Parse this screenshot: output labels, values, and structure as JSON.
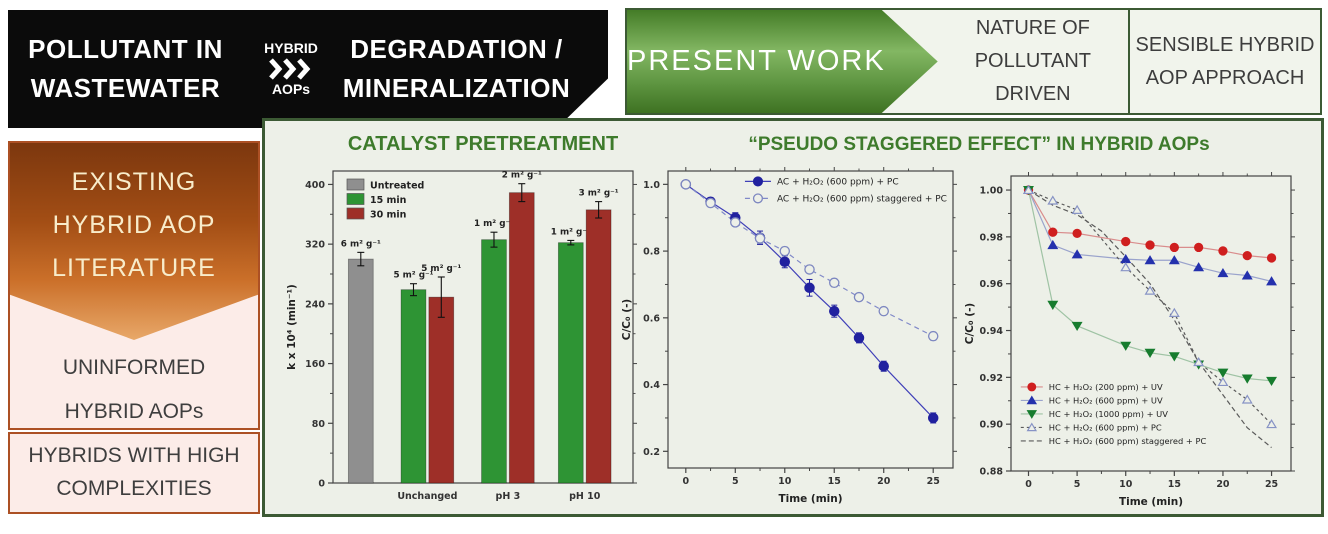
{
  "banner": {
    "left_line1": "POLLUTANT IN",
    "left_line2": "WASTEWATER",
    "mid_top": "HYBRID",
    "mid_bottom": "AOPs",
    "right_line1": "DEGRADATION /",
    "right_line2": "MINERALIZATION"
  },
  "header": {
    "present_work": "PRESENT WORK",
    "nature_line1": "NATURE OF",
    "nature_line2": "POLLUTANT DRIVEN",
    "sensible_line1": "SENSIBLE HYBRID",
    "sensible_line2": "AOP APPROACH"
  },
  "left_panel": {
    "arrow_line1": "EXISTING",
    "arrow_line2": "HYBRID AOP",
    "arrow_line3": "LITERATURE",
    "uninformed_line1": "UNINFORMED",
    "uninformed_line2": "HYBRID AOPs",
    "complex_line1": "HYBRIDS WITH HIGH",
    "complex_line2": "COMPLEXITIES"
  },
  "colors": {
    "panel_border_green": "#3c5a34",
    "title_green": "#3e7b2c",
    "orange_border": "#ac5024",
    "bar_gray": "#8f8f8f",
    "bar_green": "#2e9434",
    "bar_red": "#9e2f28",
    "line_blue": "#3f3fb8",
    "marker_red": "#cf1f1f",
    "marker_blue": "#2431ad",
    "marker_green": "#177c2e",
    "marker_slate": "#8793c5"
  },
  "chart_data": [
    {
      "type": "bar",
      "title": "CATALYST PRETREATMENT",
      "xlabel": "",
      "ylabel": "k x 10⁴ (min⁻¹)",
      "ylim": [
        0,
        418
      ],
      "yticks": [
        0,
        80,
        160,
        240,
        320,
        400
      ],
      "y_minor": 40,
      "yfmt": 0,
      "xlim": [
        0,
        4.1
      ],
      "bar_width": 0.34,
      "xticks": [
        {
          "pos": 1.29,
          "label": "Unchanged"
        },
        {
          "pos": 2.39,
          "label": "pH 3"
        },
        {
          "pos": 3.44,
          "label": "pH 10"
        }
      ],
      "legend": [
        {
          "label": "Untreated",
          "color": "#8f8f8f"
        },
        {
          "label": "15 min",
          "color": "#2e9434"
        },
        {
          "label": "30 min",
          "color": "#9e2f28"
        }
      ],
      "bars": [
        {
          "pos": 0.38,
          "value": 300,
          "err": 9,
          "color": "#8f8f8f",
          "label": "6 m² g⁻¹"
        },
        {
          "pos": 1.1,
          "value": 259,
          "err": 8,
          "color": "#2e9434",
          "label": "5 m² g⁻¹"
        },
        {
          "pos": 1.48,
          "value": 249,
          "err": 27,
          "color": "#9e2f28",
          "label": "5 m² g⁻¹"
        },
        {
          "pos": 2.2,
          "value": 326,
          "err": 10,
          "color": "#2e9434",
          "label": "1 m² g⁻¹"
        },
        {
          "pos": 2.58,
          "value": 389,
          "err": 12,
          "color": "#9e2f28",
          "label": "2 m² g⁻¹"
        },
        {
          "pos": 3.25,
          "value": 322,
          "err": 3,
          "color": "#2e9434",
          "label": "1 m² g⁻¹"
        },
        {
          "pos": 3.63,
          "value": 366,
          "err": 11,
          "color": "#9e2f28",
          "label": "3 m² g⁻¹"
        }
      ]
    },
    {
      "type": "line",
      "title": "“PSEUDO STAGGERED EFFECT” IN HYBRID AOPs",
      "xlabel": "Time (min)",
      "ylabel": "C/C₀ (-)",
      "xlim": [
        -1.8,
        27
      ],
      "ylim": [
        0.15,
        1.04
      ],
      "xticks": [
        0,
        5,
        10,
        15,
        20,
        25
      ],
      "x_minor": 2.5,
      "yticks": [
        0.2,
        0.4,
        0.6,
        0.8,
        1.0
      ],
      "y_minor": 0.1,
      "yfmt": 1,
      "legend_pos": {
        "x": 0.27,
        "y": 0.035
      },
      "series": [
        {
          "name": "AC + H₂O₂ (600 ppm) + PC",
          "color": "#21219f",
          "line_color": "#3f3fb8",
          "marker": "circle",
          "fill": true,
          "dash": null,
          "x": [
            0,
            2.5,
            5,
            7.5,
            10,
            12.5,
            15,
            17.5,
            20,
            25
          ],
          "y": [
            1.0,
            0.948,
            0.9,
            0.84,
            0.768,
            0.69,
            0.62,
            0.54,
            0.455,
            0.3
          ],
          "err": [
            0.008,
            0.012,
            0.015,
            0.02,
            0.018,
            0.025,
            0.018,
            0.015,
            0.015,
            0.015
          ]
        },
        {
          "name": "AC + H₂O₂ (600 ppm) staggered + PC",
          "color": "#7d87c0",
          "line_color": "#8089c8",
          "marker": "circle",
          "fill": false,
          "dash": "5 4",
          "x": [
            0,
            2.5,
            5,
            7.5,
            10,
            12.5,
            15,
            17.5,
            20,
            25
          ],
          "y": [
            1.0,
            0.944,
            0.886,
            0.838,
            0.8,
            0.745,
            0.705,
            0.662,
            0.62,
            0.545
          ],
          "err": [
            0.008,
            0.012,
            0.012,
            0.015,
            0.012,
            0.012,
            0.012,
            0.01,
            0.01,
            0.012
          ]
        }
      ]
    },
    {
      "type": "line",
      "xlabel": "Time (min)",
      "ylabel": "C/C₀ (-)",
      "xlim": [
        -1.8,
        27
      ],
      "ylim": [
        0.88,
        1.006
      ],
      "xticks": [
        0,
        5,
        10,
        15,
        20,
        25
      ],
      "x_minor": 2.5,
      "yticks": [
        0.88,
        0.9,
        0.92,
        0.94,
        0.96,
        0.98,
        1.0
      ],
      "y_minor": 0.01,
      "yfmt": 2,
      "legend_pos": {
        "x": 0.035,
        "y": 0.715
      },
      "series": [
        {
          "name": "HC + H₂O₂ (200 ppm) + UV",
          "color": "#cf1f1f",
          "line_color": "#d98c8c",
          "marker": "circle",
          "fill": true,
          "dash": null,
          "x": [
            0,
            2.5,
            5,
            10,
            12.5,
            15,
            17.5,
            20,
            22.5,
            25
          ],
          "y": [
            1.0,
            0.982,
            0.9815,
            0.978,
            0.9765,
            0.9755,
            0.9755,
            0.974,
            0.972,
            0.971
          ]
        },
        {
          "name": "HC + H₂O₂ (600 ppm) + UV",
          "color": "#2431ad",
          "line_color": "#9aa3cc",
          "marker": "tri-up",
          "fill": true,
          "dash": null,
          "x": [
            0,
            2.5,
            5,
            10,
            12.5,
            15,
            17.5,
            20,
            22.5,
            25
          ],
          "y": [
            1.0,
            0.9765,
            0.9725,
            0.9705,
            0.97,
            0.97,
            0.967,
            0.9645,
            0.9635,
            0.961
          ]
        },
        {
          "name": "HC + H₂O₂ (1000 ppm) + UV",
          "color": "#177c2e",
          "line_color": "#9fc3a4",
          "marker": "tri-down",
          "fill": true,
          "dash": null,
          "x": [
            0,
            2.5,
            5,
            10,
            12.5,
            15,
            17.5,
            20,
            22.5,
            25
          ],
          "y": [
            1.0,
            0.951,
            0.942,
            0.9335,
            0.9305,
            0.929,
            0.9255,
            0.922,
            0.9195,
            0.9185
          ]
        },
        {
          "name": "HC + H₂O₂ (600 ppm) + PC",
          "color": "#8793c5",
          "line_color": "#5a5a5a",
          "marker": "tri-up",
          "fill": false,
          "dash": "3 3",
          "x": [
            0,
            2.5,
            5,
            10,
            12.5,
            15,
            17.5,
            20,
            22.5,
            25
          ],
          "y": [
            1.0,
            0.9955,
            0.9915,
            0.967,
            0.957,
            0.9475,
            0.9265,
            0.918,
            0.9105,
            0.9
          ]
        },
        {
          "name": "HC + H₂O₂ (600 ppm) staggered + PC",
          "color": "#5a5a5a",
          "line_color": "#5a5a5a",
          "marker": "none",
          "fill": false,
          "dash": "5 3",
          "x": [
            0,
            2.5,
            5,
            7.5,
            10,
            12.5,
            15,
            17.5,
            20,
            22.5,
            25
          ],
          "y": [
            1.0,
            0.9935,
            0.9895,
            0.9825,
            0.9715,
            0.96,
            0.9445,
            0.9265,
            0.9125,
            0.8985,
            0.89
          ]
        }
      ]
    }
  ]
}
